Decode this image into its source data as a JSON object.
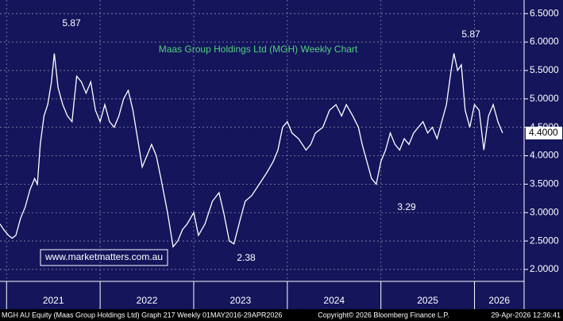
{
  "chart_data": {
    "type": "line",
    "title": "Maas Group Holdings Ltd (MGH) Weekly Chart",
    "x": [
      2020.93,
      2020.97,
      2021.02,
      2021.06,
      2021.1,
      2021.15,
      2021.2,
      2021.25,
      2021.3,
      2021.33,
      2021.36,
      2021.4,
      2021.44,
      2021.48,
      2021.51,
      2021.55,
      2021.6,
      2021.65,
      2021.7,
      2021.75,
      2021.8,
      2021.85,
      2021.9,
      2021.95,
      2022.0,
      2022.05,
      2022.1,
      2022.15,
      2022.2,
      2022.25,
      2022.3,
      2022.35,
      2022.4,
      2022.45,
      2022.5,
      2022.55,
      2022.6,
      2022.65,
      2022.72,
      2022.78,
      2022.83,
      2022.88,
      2022.93,
      2023.0,
      2023.05,
      2023.12,
      2023.2,
      2023.27,
      2023.32,
      2023.38,
      2023.43,
      2023.5,
      2023.55,
      2023.62,
      2023.7,
      2023.78,
      2023.85,
      2023.9,
      2023.95,
      2024.0,
      2024.05,
      2024.12,
      2024.2,
      2024.25,
      2024.3,
      2024.38,
      2024.45,
      2024.52,
      2024.58,
      2024.63,
      2024.7,
      2024.76,
      2024.8,
      2024.85,
      2024.9,
      2024.95,
      2025.0,
      2025.05,
      2025.1,
      2025.15,
      2025.2,
      2025.25,
      2025.3,
      2025.35,
      2025.4,
      2025.45,
      2025.5,
      2025.55,
      2025.6,
      2025.65,
      2025.7,
      2025.75,
      2025.78,
      2025.82,
      2025.86,
      2025.9,
      2025.95,
      2026.0,
      2026.05,
      2026.1,
      2026.15,
      2026.2,
      2026.25,
      2026.3
    ],
    "values": [
      2.8,
      2.7,
      2.6,
      2.55,
      2.6,
      2.9,
      3.1,
      3.4,
      3.6,
      3.5,
      4.2,
      4.7,
      4.9,
      5.3,
      5.8,
      5.2,
      4.9,
      4.7,
      4.6,
      5.4,
      5.3,
      5.1,
      5.3,
      4.8,
      4.6,
      4.9,
      4.6,
      4.5,
      4.7,
      5.0,
      5.15,
      4.8,
      4.3,
      3.8,
      4.0,
      4.2,
      4.0,
      3.6,
      3.0,
      2.4,
      2.5,
      2.7,
      2.8,
      3.0,
      2.6,
      2.8,
      3.2,
      3.35,
      3.0,
      2.5,
      2.45,
      2.9,
      3.2,
      3.3,
      3.5,
      3.7,
      3.9,
      4.1,
      4.5,
      4.6,
      4.4,
      4.3,
      4.1,
      4.2,
      4.4,
      4.5,
      4.8,
      4.9,
      4.7,
      4.9,
      4.7,
      4.5,
      4.2,
      3.9,
      3.6,
      3.5,
      3.9,
      4.1,
      4.4,
      4.2,
      4.1,
      4.3,
      4.2,
      4.4,
      4.5,
      4.6,
      4.4,
      4.5,
      4.3,
      4.6,
      4.9,
      5.5,
      5.8,
      5.5,
      5.6,
      4.8,
      4.5,
      4.9,
      4.8,
      4.1,
      4.7,
      4.9,
      4.6,
      4.4
    ],
    "color": "#ffffff",
    "xlim": [
      2020.93,
      2026.53
    ],
    "xticks": [
      {
        "value": 2021,
        "label": "2021"
      },
      {
        "value": 2022,
        "label": "2022"
      },
      {
        "value": 2023,
        "label": "2023"
      },
      {
        "value": 2024,
        "label": "2024"
      },
      {
        "value": 2025,
        "label": "2025"
      },
      {
        "value": 2026,
        "label": "2026"
      }
    ],
    "ylim": [
      1.79,
      6.74
    ],
    "yticks": [
      {
        "value": 2,
        "label": "2.0000"
      },
      {
        "value": 2.5,
        "label": "2.5000"
      },
      {
        "value": 3,
        "label": "3.0000"
      },
      {
        "value": 3.5,
        "label": "3.5000"
      },
      {
        "value": 4,
        "label": "4.0000"
      },
      {
        "value": 4.5,
        "label": "4.5000"
      },
      {
        "value": 5,
        "label": "5.0000"
      },
      {
        "value": 5.5,
        "label": "5.5000"
      },
      {
        "value": 6,
        "label": "6.0000"
      },
      {
        "value": 6.5,
        "label": "6.5000"
      }
    ],
    "grid": true,
    "last_price": {
      "value": 4.4,
      "label": "4.4000"
    },
    "annotations": [
      "5.87",
      "5.87",
      "3.29",
      "2.38"
    ],
    "watermark": "www.marketmatters.com.au",
    "footer": [
      "MGH AU Equity (Maas Group Holdings Ltd) Graph 217 Weekly 01MAY2016-29APR2026",
      "Copyright© 2026 Bloomberg Finance L.P.",
      "29-Apr-2026 12:36:41"
    ]
  }
}
